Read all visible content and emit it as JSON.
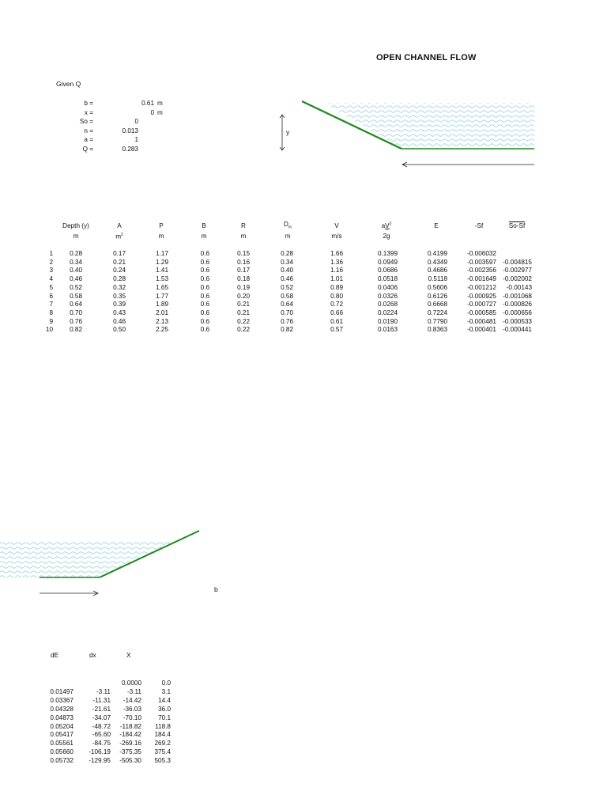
{
  "title": "OPEN CHANNEL FLOW",
  "given_label": "Given Q",
  "params": [
    {
      "label": "b =",
      "value": "0.61",
      "unit": "m"
    },
    {
      "label": "x =",
      "value": "0",
      "unit": "m"
    },
    {
      "label": "So =",
      "value": "0",
      "unit": ""
    },
    {
      "label": "n =",
      "value": "0.013",
      "unit": ""
    },
    {
      "label": "a =",
      "value": "1",
      "unit": ""
    },
    {
      "label": "Q =",
      "value": "0.283",
      "unit": ""
    }
  ],
  "diagram": {
    "y_label": "y",
    "b_label": "b",
    "water_color": "#a9d6e8",
    "bed_color": "#1b8a1b"
  },
  "table": {
    "headers": [
      "Depth (y)",
      "A",
      "P",
      "B",
      "R",
      "D",
      "V",
      "aV²/2g",
      "E",
      "-Sf",
      "So-Sf"
    ],
    "units": [
      "m",
      "m²",
      "m",
      "m",
      "m",
      "m",
      "m/s",
      "2g",
      "",
      "",
      ""
    ],
    "rows": [
      [
        "1",
        "0.28",
        "0.17",
        "1.17",
        "0.6",
        "0.15",
        "0.28",
        "1.66",
        "0.1399",
        "0.4199",
        "-0.006032",
        ""
      ],
      [
        "2",
        "0.34",
        "0.21",
        "1.29",
        "0.6",
        "0.16",
        "0.34",
        "1.36",
        "0.0949",
        "0.4349",
        "-0.003597",
        "-0.004815"
      ],
      [
        "3",
        "0.40",
        "0.24",
        "1.41",
        "0.6",
        "0.17",
        "0.40",
        "1.16",
        "0.0686",
        "0.4686",
        "-0.002356",
        "-0.002977"
      ],
      [
        "4",
        "0.46",
        "0.28",
        "1.53",
        "0.6",
        "0.18",
        "0.46",
        "1.01",
        "0.0518",
        "0.5118",
        "-0.001649",
        "-0.002002"
      ],
      [
        "5",
        "0.52",
        "0.32",
        "1.65",
        "0.6",
        "0.19",
        "0.52",
        "0.89",
        "0.0406",
        "0.5606",
        "-0.001212",
        "-0.00143"
      ],
      [
        "6",
        "0.58",
        "0.35",
        "1.77",
        "0.6",
        "0.20",
        "0.58",
        "0.80",
        "0.0326",
        "0.6126",
        "-0.000925",
        "-0.001068"
      ],
      [
        "7",
        "0.64",
        "0.39",
        "1.89",
        "0.6",
        "0.21",
        "0.64",
        "0.72",
        "0.0268",
        "0.6668",
        "-0.000727",
        "-0.000826"
      ],
      [
        "8",
        "0.70",
        "0.43",
        "2.01",
        "0.6",
        "0.21",
        "0.70",
        "0.66",
        "0.0224",
        "0.7224",
        "-0.000585",
        "-0.000656"
      ],
      [
        "9",
        "0.76",
        "0.46",
        "2.13",
        "0.6",
        "0.22",
        "0.76",
        "0.61",
        "0.0190",
        "0.7790",
        "-0.000481",
        "-0.000533"
      ],
      [
        "10",
        "0.82",
        "0.50",
        "2.25",
        "0.6",
        "0.22",
        "0.82",
        "0.57",
        "0.0163",
        "0.8363",
        "-0.000401",
        "-0.000441"
      ]
    ]
  },
  "lower_table": {
    "headers": [
      "dE",
      "dx",
      "X"
    ],
    "rows": [
      [
        "",
        "",
        "0.0000",
        "0.0"
      ],
      [
        "0.01497",
        "-3.11",
        "-3.11",
        "3.1"
      ],
      [
        "0.03367",
        "-11.31",
        "-14.42",
        "14.4"
      ],
      [
        "0.04328",
        "-21.61",
        "-36.03",
        "36.0"
      ],
      [
        "0.04873",
        "-34.07",
        "-70.10",
        "70.1"
      ],
      [
        "0.05204",
        "-48.72",
        "-118.82",
        "118.8"
      ],
      [
        "0.05417",
        "-65.60",
        "-184.42",
        "184.4"
      ],
      [
        "0.05561",
        "-84.75",
        "-269.16",
        "269.2"
      ],
      [
        "0.05660",
        "-106.19",
        "-375.35",
        "375.4"
      ],
      [
        "0.05732",
        "-129.95",
        "-505.30",
        "505.3"
      ]
    ]
  }
}
